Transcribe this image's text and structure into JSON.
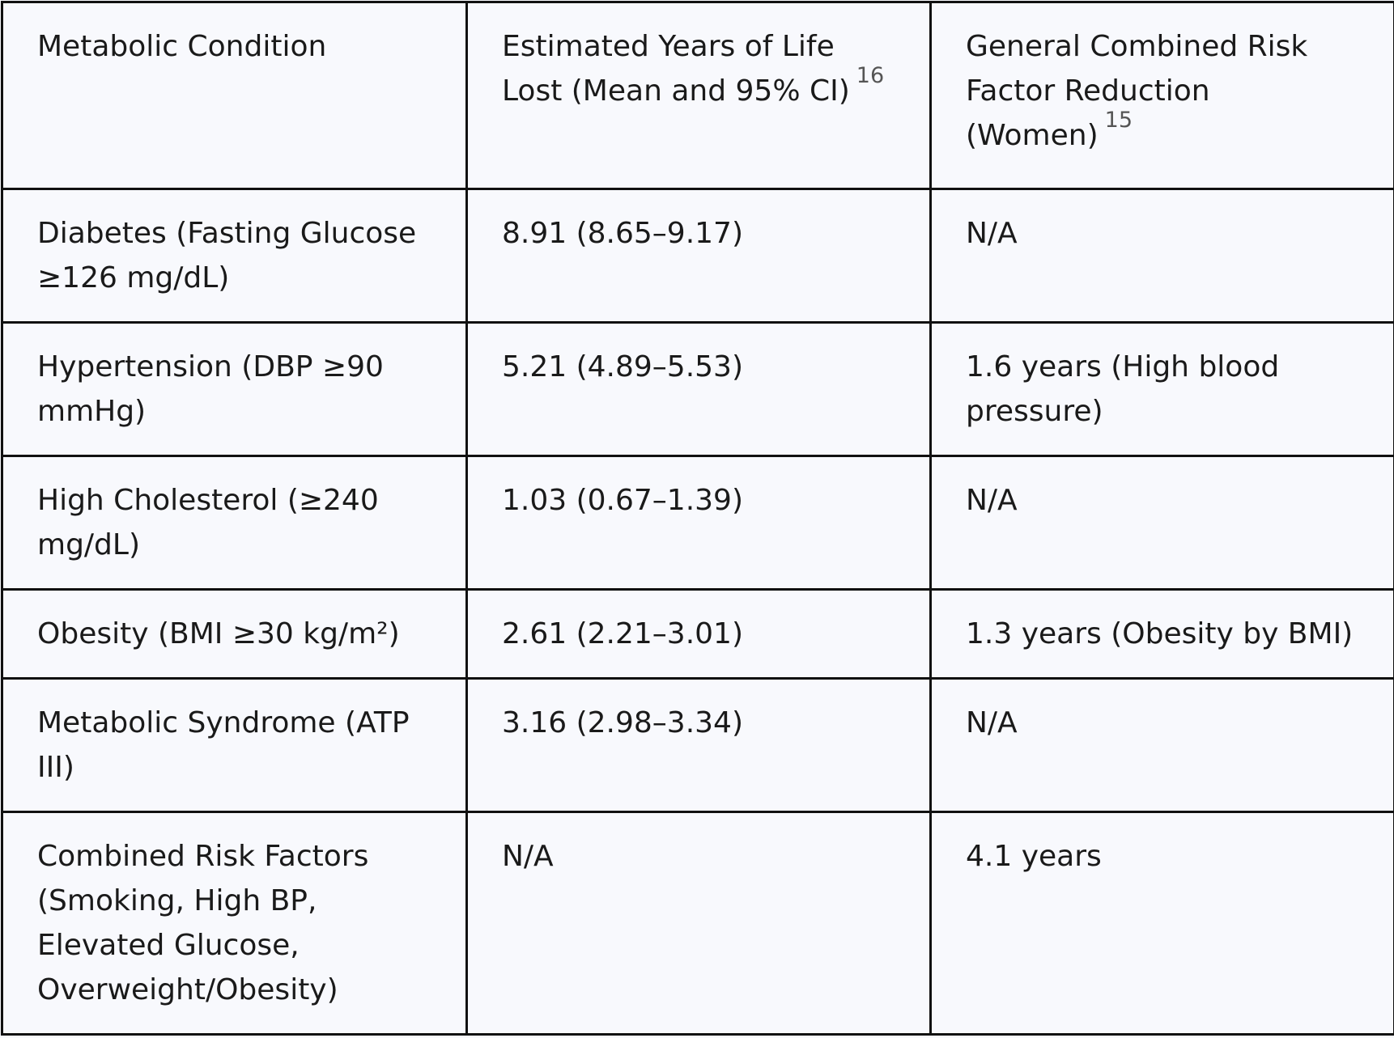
{
  "table": {
    "header": [
      {
        "text": "Metabolic Condition"
      },
      {
        "text": "Estimated Years of Life Lost (Mean and 95% CI)",
        "sup": "16"
      },
      {
        "text": "General Combined Risk Factor Reduction (Women)",
        "sup": "15"
      }
    ],
    "rows": [
      [
        "Diabetes (Fasting Glucose ≥126 mg/dL)",
        "8.91 (8.65–9.17)",
        "N/A"
      ],
      [
        "Hypertension (DBP ≥90 mmHg)",
        "5.21 (4.89–5.53)",
        "1.6 years (High blood pressure)"
      ],
      [
        "High Cholesterol (≥240 mg/dL)",
        "1.03 (0.67–1.39)",
        "N/A"
      ],
      [
        "Obesity (BMI ≥30 kg/m²)",
        "2.61 (2.21–3.01)",
        "1.3 years (Obesity by BMI)"
      ],
      [
        "Metabolic Syndrome (ATP III)",
        "3.16 (2.98–3.34)",
        "N/A"
      ],
      [
        "Combined Risk Factors (Smoking, High BP, Elevated Glucose, Overweight/Obesity)",
        "N/A",
        "4.1 years"
      ]
    ]
  }
}
